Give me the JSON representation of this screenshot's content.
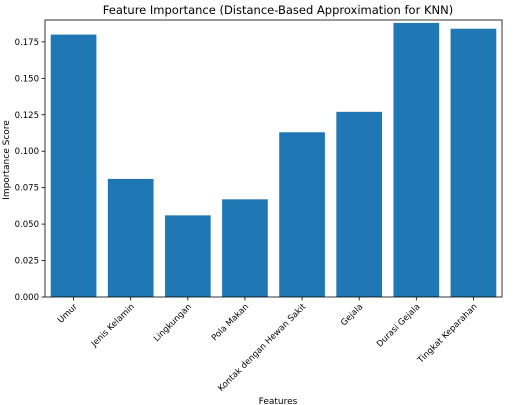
{
  "chart_data": {
    "type": "bar",
    "title": "Feature Importance (Distance-Based Approximation for KNN)",
    "xlabel": "Features",
    "ylabel": "Importance Score",
    "categories": [
      "Umur",
      "Jenis Kelamin",
      "Lingkungan",
      "Pola Makan",
      "Kontak dengan Hewan Sakit",
      "Gejala",
      "Durasi Gejala",
      "Tingkat Keparahan"
    ],
    "values": [
      0.18,
      0.081,
      0.056,
      0.067,
      0.113,
      0.127,
      0.188,
      0.184
    ],
    "ylim": [
      0,
      0.19
    ],
    "yticks": [
      "0.000",
      "0.025",
      "0.050",
      "0.075",
      "0.100",
      "0.125",
      "0.150",
      "0.175"
    ],
    "bar_color": "#1f77b4",
    "grid": false,
    "legend": "none"
  }
}
